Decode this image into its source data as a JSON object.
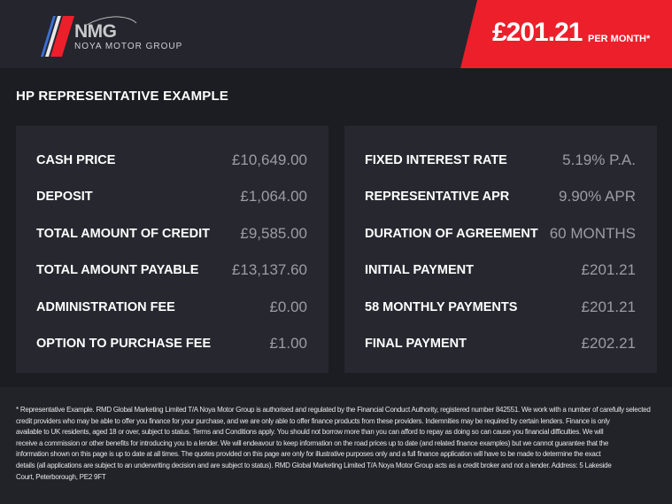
{
  "header": {
    "logo": {
      "mark": "NMG",
      "name": "NOYA MOTOR GROUP"
    },
    "price": "£201.21",
    "per_month": "PER MONTH*",
    "accent": "#ec1f2b"
  },
  "title": "HP REPRESENTATIVE EXAMPLE",
  "left_panel": [
    {
      "label": "CASH PRICE",
      "value": "£10,649.00"
    },
    {
      "label": "DEPOSIT",
      "value": "£1,064.00"
    },
    {
      "label": "TOTAL AMOUNT OF CREDIT",
      "value": "£9,585.00"
    },
    {
      "label": "TOTAL AMOUNT PAYABLE",
      "value": "£13,137.60"
    },
    {
      "label": "ADMINISTRATION FEE",
      "value": "£0.00"
    },
    {
      "label": "OPTION TO PURCHASE FEE",
      "value": "£1.00"
    }
  ],
  "right_panel": [
    {
      "label": "FIXED INTEREST RATE",
      "value": "5.19% P.A."
    },
    {
      "label": "REPRESENTATIVE APR",
      "value": "9.90% APR"
    },
    {
      "label": "DURATION OF AGREEMENT",
      "value": "60 MONTHS"
    },
    {
      "label": "INITIAL PAYMENT",
      "value": "£201.21"
    },
    {
      "label": "58 MONTHLY PAYMENTS",
      "value": "£201.21"
    },
    {
      "label": "FINAL PAYMENT",
      "value": "£202.21"
    }
  ],
  "disclaimer": [
    "* Representative Example. RMD Global Marketing Limited T/A Noya Motor Group is authorised and regulated by the Financial Conduct Authority, registered number 842551. We work with a number of carefully selected",
    "credit providers who may be able to offer you finance for your purchase, and we are only able to offer finance products from these providers. Indemnities may be required by certain lenders. Finance is only",
    "available to UK residents, aged 18 or over, subject to status. Terms and Conditions apply. You should not borrow more than you can afford to repay as doing so can cause you financial difficulties. We will",
    "receive a commission or other benefits for introducing you to a lender. We will endeavour to keep information on the road prices up to date (and related finance examples) but we cannot guarantee that the",
    "information shown on this page is up to date at all times. The quotes provided on this page are only for illustrative purposes only and a full finance application will have to be made to determine the exact",
    "details (all applications are subject to an underwriting decision and are subject to status). RMD Global Marketing Limited T/A Noya Motor Group acts as a credit broker and not a lender. Address: 5 Lakeside",
    "Court, Peterborough, PE2 9FT"
  ]
}
